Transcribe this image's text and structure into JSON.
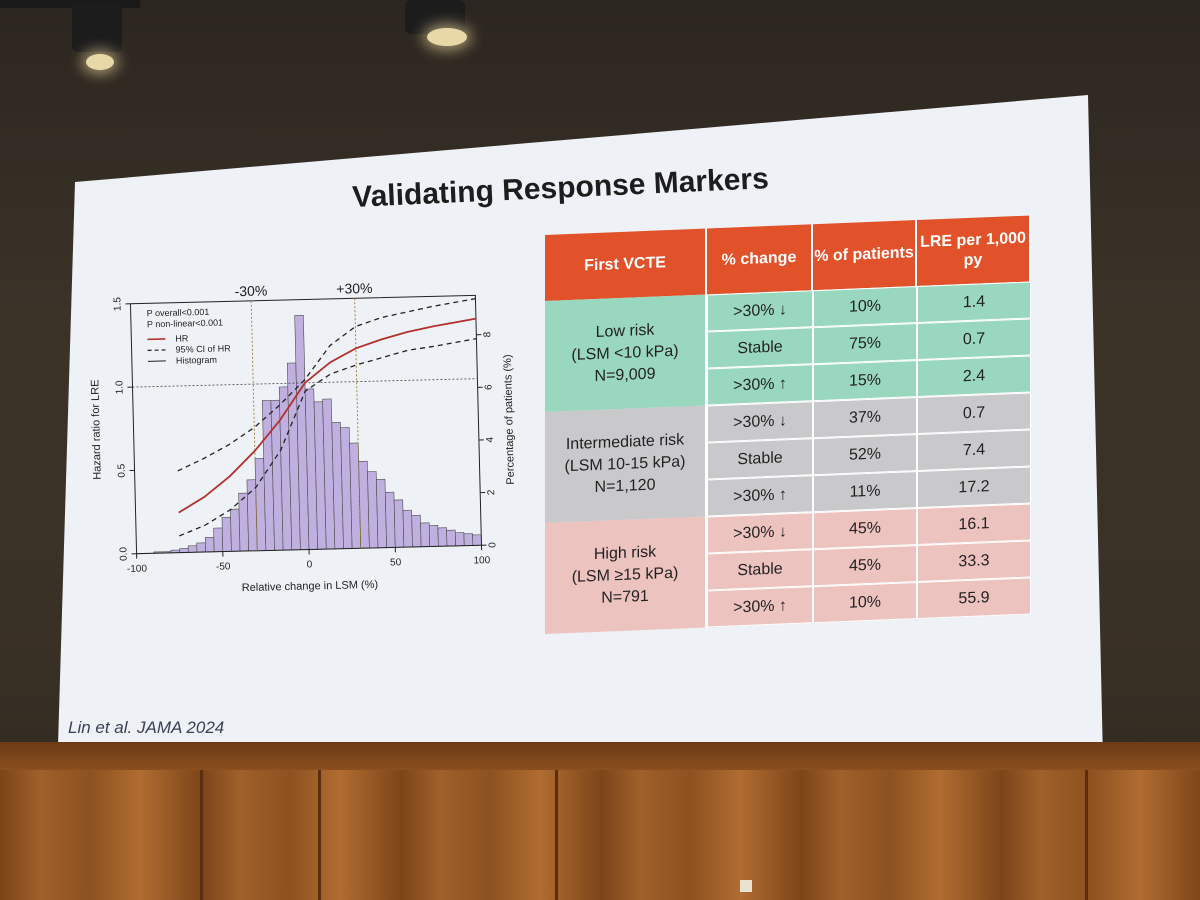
{
  "slide": {
    "title": "Validating Response Markers",
    "citation": "Lin et al. JAMA 2024"
  },
  "chart_data": {
    "type": "bar",
    "title": "",
    "xlabel": "Relative change in LSM (%)",
    "ylabel": "Hazard ratio for LRE",
    "y2label": "Percentage of patients (%)",
    "xlim": [
      -100,
      100
    ],
    "ylim": [
      0,
      1.5
    ],
    "y2lim": [
      0,
      9.5
    ],
    "xticks": [
      "-100",
      "-50",
      "0",
      "50",
      "100"
    ],
    "yticks": [
      "0.0",
      "0.5",
      "1.0",
      "1.5"
    ],
    "y2ticks": [
      "0",
      "2",
      "4",
      "6",
      "8"
    ],
    "annotations": [
      "-30%",
      "+30%"
    ],
    "stats": [
      "P overall<0.001",
      "P non-linear<0.001"
    ],
    "legend": [
      "HR",
      "95% CI of HR",
      "Histogram"
    ],
    "reference_lines": {
      "vertical_x": [
        -30,
        30
      ],
      "horizontal_hr": 1.0
    },
    "histogram": {
      "bin_start": [
        -90,
        -85,
        -80,
        -75,
        -70,
        -65,
        -60,
        -55,
        -50,
        -45,
        -40,
        -35,
        -30,
        -25,
        -20,
        -15,
        -10,
        -5,
        0,
        5,
        10,
        15,
        20,
        25,
        30,
        35,
        40,
        45,
        50,
        55,
        60,
        65,
        70,
        75,
        80,
        85,
        90,
        95
      ],
      "bin_width": 5,
      "percent": [
        0.05,
        0.05,
        0.1,
        0.15,
        0.25,
        0.35,
        0.55,
        0.9,
        1.3,
        1.6,
        2.2,
        2.7,
        3.5,
        5.7,
        5.7,
        6.2,
        7.1,
        8.9,
        6.1,
        5.6,
        5.7,
        4.8,
        4.6,
        4.0,
        3.3,
        2.9,
        2.6,
        2.1,
        1.8,
        1.4,
        1.2,
        0.9,
        0.8,
        0.7,
        0.6,
        0.5,
        0.45,
        0.4
      ]
    },
    "series": [
      {
        "name": "HR",
        "x": [
          -75,
          -60,
          -45,
          -30,
          -15,
          0,
          15,
          30,
          45,
          60,
          75,
          100
        ],
        "y": [
          0.24,
          0.33,
          0.45,
          0.6,
          0.78,
          1.0,
          1.12,
          1.2,
          1.25,
          1.29,
          1.32,
          1.36
        ]
      },
      {
        "name": "95% CI of HR (upper)",
        "x": [
          -75,
          -60,
          -45,
          -30,
          -15,
          0,
          15,
          30,
          45,
          60,
          75,
          100
        ],
        "y": [
          0.49,
          0.56,
          0.64,
          0.74,
          0.87,
          1.02,
          1.22,
          1.33,
          1.38,
          1.41,
          1.44,
          1.48
        ]
      },
      {
        "name": "95% CI of HR (lower)",
        "x": [
          -75,
          -60,
          -45,
          -30,
          -15,
          0,
          15,
          30,
          45,
          60,
          75,
          100
        ],
        "y": [
          0.1,
          0.16,
          0.25,
          0.38,
          0.6,
          0.95,
          1.05,
          1.1,
          1.14,
          1.18,
          1.2,
          1.24
        ]
      }
    ]
  },
  "table": {
    "headers": [
      "First VCTE",
      "% change",
      "% of patients",
      "LRE per 1,000 py"
    ],
    "groups": [
      {
        "label_lines": [
          "Low risk",
          "(LSM <10 kPa)",
          "N=9,009"
        ],
        "rows": [
          {
            "change": ">30% ↓",
            "pct": "10%",
            "lre": "1.4"
          },
          {
            "change": "Stable",
            "pct": "75%",
            "lre": "0.7"
          },
          {
            "change": ">30% ↑",
            "pct": "15%",
            "lre": "2.4"
          }
        ]
      },
      {
        "label_lines": [
          "Intermediate risk",
          "(LSM 10-15 kPa)",
          "N=1,120"
        ],
        "rows": [
          {
            "change": ">30% ↓",
            "pct": "37%",
            "lre": "0.7"
          },
          {
            "change": "Stable",
            "pct": "52%",
            "lre": "7.4"
          },
          {
            "change": ">30% ↑",
            "pct": "11%",
            "lre": "17.2"
          }
        ]
      },
      {
        "label_lines": [
          "High risk",
          "(LSM ≥15 kPa)",
          "N=791"
        ],
        "rows": [
          {
            "change": ">30% ↓",
            "pct": "45%",
            "lre": "16.1"
          },
          {
            "change": "Stable",
            "pct": "45%",
            "lre": "33.3"
          },
          {
            "change": ">30% ↑",
            "pct": "10%",
            "lre": "55.9"
          }
        ]
      }
    ]
  }
}
